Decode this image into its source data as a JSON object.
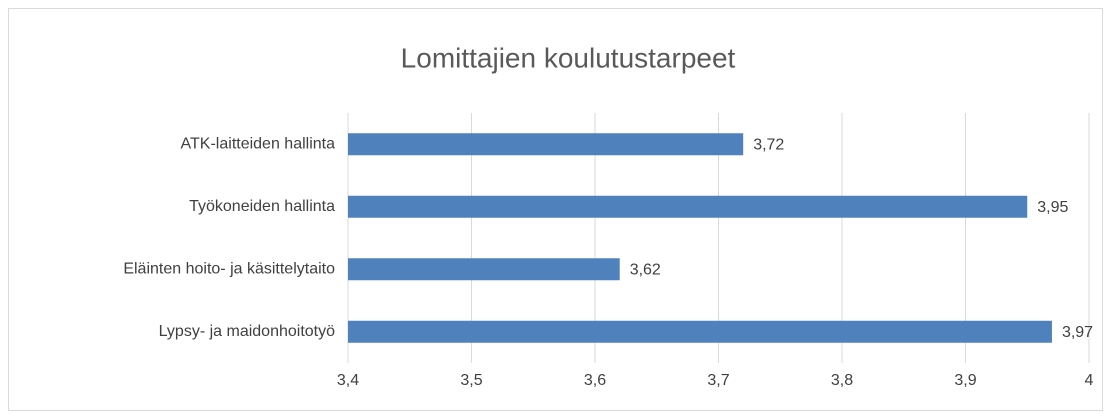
{
  "chart_data": {
    "type": "barh",
    "title": "Lomittajien koulutustarpeet",
    "categories": [
      "ATK-laitteiden hallinta",
      "Työkoneiden hallinta",
      "Eläinten hoito- ja käsittelytaito",
      "Lypsy- ja maidonhoitotyö"
    ],
    "values": [
      3.72,
      3.95,
      3.62,
      3.97
    ],
    "value_labels": [
      "3,72",
      "3,95",
      "3,62",
      "3,97"
    ],
    "color": "#4f81bd",
    "xlim": [
      3.4,
      4
    ],
    "xticks": [
      {
        "value": 3.4,
        "label": "3,4"
      },
      {
        "value": 3.5,
        "label": "3,5"
      },
      {
        "value": 3.6,
        "label": "3,6"
      },
      {
        "value": 3.7,
        "label": "3,7"
      },
      {
        "value": 3.8,
        "label": "3,8"
      },
      {
        "value": 3.9,
        "label": "3,9"
      },
      4
    ],
    "grid": true
  }
}
